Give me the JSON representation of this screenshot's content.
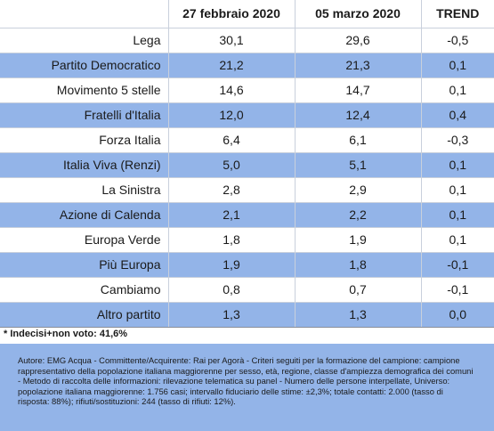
{
  "table": {
    "headers": [
      "",
      "27 febbraio 2020",
      "05 marzo 2020",
      "TREND"
    ],
    "rows": [
      {
        "party": "Lega",
        "feb": "30,1",
        "mar": "29,6",
        "trend": "-0,5"
      },
      {
        "party": "Partito Democratico",
        "feb": "21,2",
        "mar": "21,3",
        "trend": "0,1"
      },
      {
        "party": "Movimento 5 stelle",
        "feb": "14,6",
        "mar": "14,7",
        "trend": "0,1"
      },
      {
        "party": "Fratelli d'Italia",
        "feb": "12,0",
        "mar": "12,4",
        "trend": "0,4"
      },
      {
        "party": "Forza Italia",
        "feb": "6,4",
        "mar": "6,1",
        "trend": "-0,3"
      },
      {
        "party": "Italia Viva (Renzi)",
        "feb": "5,0",
        "mar": "5,1",
        "trend": "0,1"
      },
      {
        "party": "La Sinistra",
        "feb": "2,8",
        "mar": "2,9",
        "trend": "0,1"
      },
      {
        "party": "Azione di Calenda",
        "feb": "2,1",
        "mar": "2,2",
        "trend": "0,1"
      },
      {
        "party": "Europa Verde",
        "feb": "1,8",
        "mar": "1,9",
        "trend": "0,1"
      },
      {
        "party": "Più Europa",
        "feb": "1,9",
        "mar": "1,8",
        "trend": "-0,1"
      },
      {
        "party": "Cambiamo",
        "feb": "0,8",
        "mar": "0,7",
        "trend": "-0,1"
      },
      {
        "party": "Altro partito",
        "feb": "1,3",
        "mar": "1,3",
        "trend": "0,0"
      }
    ]
  },
  "note": "* Indecisi+non voto: 41,6%",
  "footer_text": "Autore: EMG Acqua - Committente/Acquirente: Rai per Agorà - Criteri seguiti per la formazione del campione: campione rappresentativo della popolazione italiana maggiorenne per sesso, età, regione, classe d'ampiezza demografica dei comuni - Metodo di raccolta delle informazioni: rilevazione telematica su panel - Numero delle persone interpellate, Universo: popolazione italiana maggiorenne: 1.756 casi; intervallo fiduciario delle stime: ±2,3%; totale contatti: 2.000 (tasso di risposta: 88%); rifiuti/sostituzioni: 244 (tasso di rifiuti: 12%).",
  "colors": {
    "row_highlight": "#93b4e8",
    "footer_background": "#93b4e8"
  }
}
